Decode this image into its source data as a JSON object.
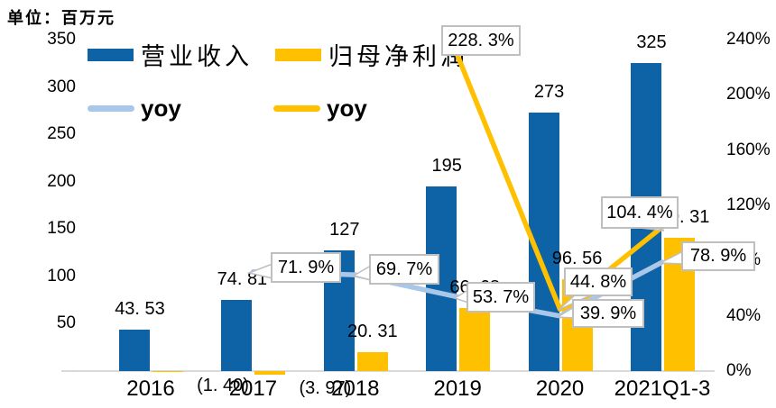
{
  "unit_label": "单位：百万元",
  "colors": {
    "revenue_bar": "#0E63A6",
    "profit_bar": "#FFC000",
    "revenue_yoy_line": "#A9C7E8",
    "profit_yoy_line": "#FFC000",
    "axis_line": "#D9D9D9",
    "callout_border": "#BFBFBF",
    "callout_bg": "#FFFFFF",
    "text": "#000000"
  },
  "legend": {
    "position": "top-left",
    "items": [
      {
        "key": "revenue",
        "label": "营业收入",
        "type": "bar",
        "color": "#0E63A6"
      },
      {
        "key": "net-profit",
        "label": "归母净利润",
        "type": "bar",
        "color": "#FFC000"
      },
      {
        "key": "revenue-yoy",
        "label": "yoy",
        "type": "line",
        "color": "#A9C7E8"
      },
      {
        "key": "net-profit-yoy",
        "label": "yoy",
        "type": "line",
        "color": "#FFC000"
      }
    ]
  },
  "chart_data": {
    "type": "bar",
    "subtype": "combo bar + line, dual axis",
    "grid": false,
    "categories": [
      "2016",
      "2017",
      "2018",
      "2019",
      "2020",
      "2021Q1-3"
    ],
    "series": [
      {
        "key": "revenue",
        "name": "营业收入",
        "type": "bar",
        "axis": "left",
        "color": "#0E63A6",
        "values": [
          43.53,
          74.81,
          127,
          195,
          273,
          325
        ],
        "labels": [
          "43.53",
          "74.81",
          "127",
          "195",
          "273",
          "325"
        ]
      },
      {
        "key": "net-profit",
        "name": "归母净利润",
        "type": "bar",
        "axis": "left",
        "color": "#FFC000",
        "values": [
          -1.4,
          -3.97,
          20.31,
          66.68,
          96.56,
          140.31
        ],
        "labels": [
          "(1.40)",
          "(3.97)",
          "20.31",
          "66.68",
          "96.56",
          "140.31"
        ]
      },
      {
        "key": "revenue-yoy",
        "name": "yoy",
        "type": "line",
        "axis": "right",
        "color": "#A9C7E8",
        "values": [
          null,
          71.9,
          69.7,
          53.7,
          39.9,
          78.9
        ],
        "labels": [
          null,
          "71.9%",
          "69.7%",
          "53.7%",
          "39.9%",
          "78.9%"
        ]
      },
      {
        "key": "net-profit-yoy",
        "name": "yoy",
        "type": "line",
        "axis": "right",
        "color": "#FFC000",
        "values": [
          null,
          null,
          null,
          228.3,
          44.8,
          104.4
        ],
        "labels": [
          null,
          null,
          null,
          "228.3%",
          "44.8%",
          "104.4%"
        ]
      }
    ],
    "left_axis": {
      "min": 0,
      "max": 350,
      "ticks": [
        "350",
        "300",
        "250",
        "200",
        "150",
        "100",
        "50",
        "-"
      ],
      "tick_values": [
        350,
        300,
        250,
        200,
        150,
        100,
        50,
        0
      ]
    },
    "right_axis": {
      "min": 0,
      "max": 240,
      "ticks": [
        "240%",
        "200%",
        "160%",
        "120%",
        "80%",
        "40%",
        "0%"
      ],
      "tick_values": [
        240,
        200,
        160,
        120,
        80,
        40,
        0
      ]
    }
  }
}
